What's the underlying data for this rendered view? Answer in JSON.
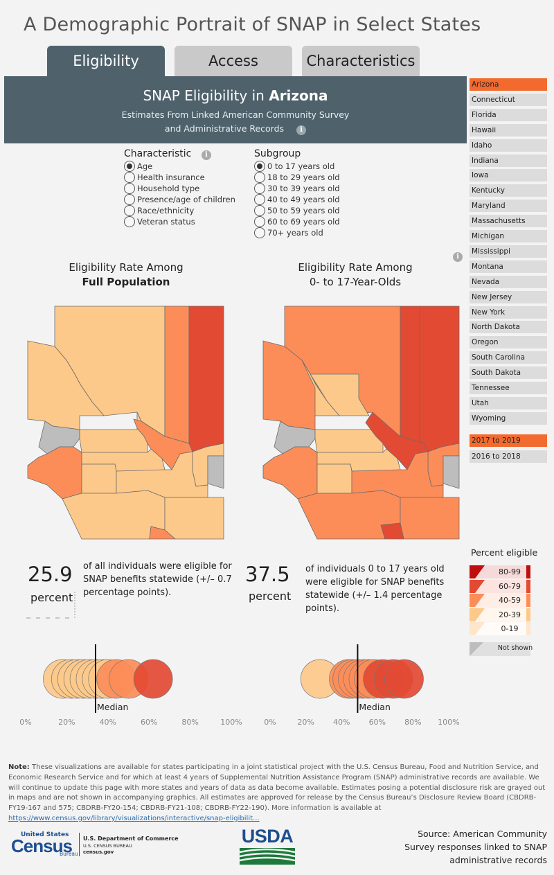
{
  "page_title": "A Demographic Portrait of SNAP in Select States",
  "tabs": [
    {
      "label": "Eligibility",
      "active": true
    },
    {
      "label": "Access",
      "active": false
    },
    {
      "label": "Characteristics",
      "active": false
    }
  ],
  "banner": {
    "heading_prefix": "SNAP Eligibility in",
    "state": "Arizona",
    "subtitle_line1": "Estimates From Linked American Community Survey",
    "subtitle_line2": "and Administrative Records",
    "info_icon": "info-icon"
  },
  "characteristic": {
    "label": "Characteristic",
    "options": [
      "Age",
      "Health insurance",
      "Household type",
      "Presence/age of children",
      "Race/ethnicity",
      "Veteran status"
    ],
    "selected": "Age"
  },
  "subgroup": {
    "label": "Subgroup",
    "options": [
      "0 to 17 years old",
      "18 to 29 years old",
      "30 to 39 years old",
      "40 to 49 years old",
      "50 to 59 years old",
      "60 to 69 years old",
      "70+ years old"
    ],
    "selected": "0 to 17 years old"
  },
  "states": {
    "items": [
      "Arizona",
      "Connecticut",
      "Florida",
      "Hawaii",
      "Idaho",
      "Indiana",
      "Iowa",
      "Kentucky",
      "Maryland",
      "Massachusetts",
      "Michigan",
      "Mississippi",
      "Montana",
      "Nevada",
      "New Jersey",
      "New York",
      "North Dakota",
      "Oregon",
      "South Carolina",
      "South Dakota",
      "Tennessee",
      "Utah",
      "Wyoming"
    ],
    "selected": "Arizona"
  },
  "years": {
    "items": [
      "2017 to 2019",
      "2016 to 2018"
    ],
    "selected": "2017 to 2019"
  },
  "left_map": {
    "title_line1": "Eligibility Rate Among",
    "title_line2": "Full Population"
  },
  "right_map": {
    "title_line1": "Eligibility Rate Among",
    "title_line2": "0- to 17-Year-Olds"
  },
  "left_stat": {
    "value": "25.9",
    "unit": "percent",
    "text_lines": [
      "of all individuals were eligible for",
      "SNAP benefits statewide (+/– 0.7",
      "percentage points)."
    ]
  },
  "right_stat": {
    "value": "37.5",
    "unit": "percent",
    "text_lines": [
      "of individuals 0 to 17 years old",
      "were eligible for SNAP benefits",
      "statewide (+/– 1.4 percentage",
      "points)."
    ]
  },
  "legend": {
    "title": "Percent eligible",
    "bins": [
      {
        "label": "80-99",
        "color": "#c00d0d"
      },
      {
        "label": "60-79",
        "color": "#e34a33"
      },
      {
        "label": "40-59",
        "color": "#fc8d59"
      },
      {
        "label": "20-39",
        "color": "#fdc98a"
      },
      {
        "label": "0-19",
        "color": "#fee5cc"
      }
    ],
    "not_shown": {
      "label": "Not shown",
      "color": "#bdbdbd"
    }
  },
  "strip_axis": {
    "ticks": [
      "0%",
      "20%",
      "40%",
      "60%",
      "80%",
      "100%"
    ],
    "median_label": "Median"
  },
  "left_strip": {
    "median_pct": 34,
    "circles": [
      {
        "pct": 18,
        "color": "#fdc98a"
      },
      {
        "pct": 22,
        "color": "#fdc98a"
      },
      {
        "pct": 25,
        "color": "#fdc98a"
      },
      {
        "pct": 28,
        "color": "#fdc98a"
      },
      {
        "pct": 31,
        "color": "#fdc98a"
      },
      {
        "pct": 34,
        "color": "#fdc98a"
      },
      {
        "pct": 37,
        "color": "#fdc98a"
      },
      {
        "pct": 40,
        "color": "#fdc98a"
      },
      {
        "pct": 44,
        "color": "#fc8d59"
      },
      {
        "pct": 50,
        "color": "#fc8d59"
      },
      {
        "pct": 62,
        "color": "#e34a33"
      }
    ]
  },
  "right_strip": {
    "median_pct": 49,
    "circles": [
      {
        "pct": 28,
        "color": "#fdc98a"
      },
      {
        "pct": 44,
        "color": "#fc8d59"
      },
      {
        "pct": 46,
        "color": "#fc8d59"
      },
      {
        "pct": 49,
        "color": "#fc8d59"
      },
      {
        "pct": 52,
        "color": "#fc8d59"
      },
      {
        "pct": 55,
        "color": "#fc8d59"
      },
      {
        "pct": 58,
        "color": "#fc8d59"
      },
      {
        "pct": 63,
        "color": "#e34a33"
      },
      {
        "pct": 69,
        "color": "#e34a33"
      },
      {
        "pct": 75,
        "color": "#e34a33"
      }
    ]
  },
  "note": {
    "label": "Note:",
    "text": "These visualizations are available for states participating in a joint statistical project with the U.S. Census Bureau, Food and Nutrition Service, and Economic Research Service and for which at least 4 years of Supplemental Nutrition Assistance Program (SNAP) administrative records are available. We will continue to update this page with more states and years of data as data become available. Estimates posing a potential disclosure risk are grayed out in maps and are not shown in accompanying graphics. All estimates are approved for release by the Census Bureau’s Disclosure Review Board (CBDRB-FY19-167 and 575; CBDRB-FY20-154; CBDRB-FY21-108; CBDRB-FY22-190). More information is available at",
    "link": "https://www.census.gov/library/visualizations/interactive/snap-eligibilit..."
  },
  "footer": {
    "census_logo_word1": "United States",
    "census_logo_word2": "Census",
    "census_logo_word3": "Bureau",
    "commerce_line1": "U.S. Department of Commerce",
    "commerce_line2": "U.S. CENSUS BUREAU",
    "commerce_line3": "census.gov",
    "usda_logo": "USDA",
    "source_lines": [
      "Source: American Community",
      "Survey responses linked to SNAP",
      "administrative records"
    ]
  }
}
